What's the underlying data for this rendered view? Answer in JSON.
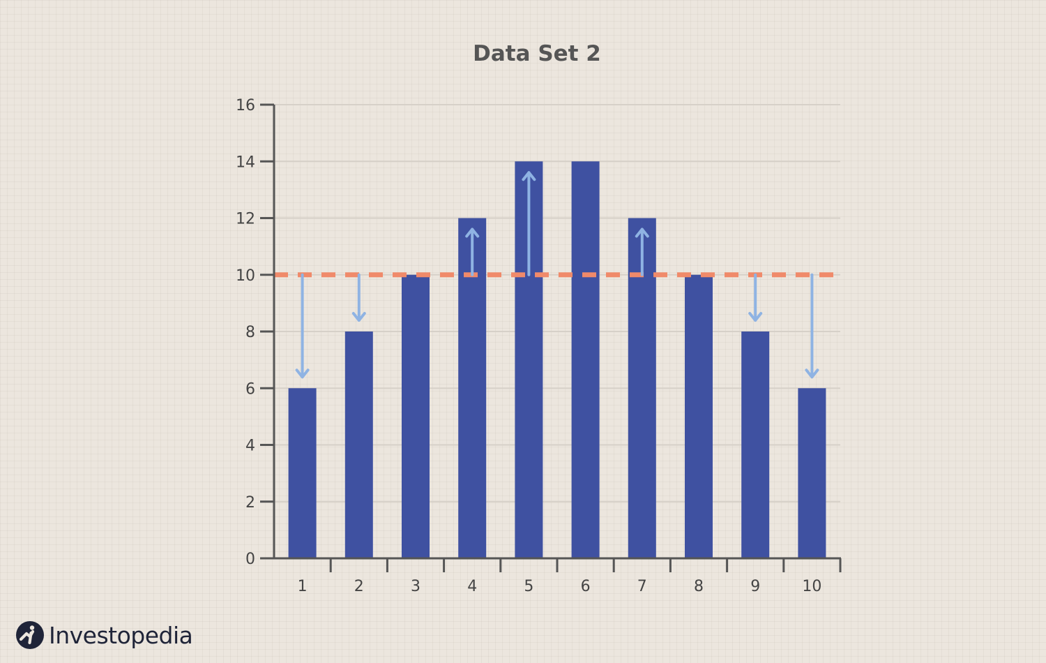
{
  "chart_data": {
    "type": "bar",
    "title": "Data Set 2",
    "xlabel": "",
    "ylabel": "",
    "categories": [
      "1",
      "2",
      "3",
      "4",
      "5",
      "6",
      "7",
      "8",
      "9",
      "10"
    ],
    "values": [
      6,
      8,
      10,
      12,
      14,
      14,
      12,
      10,
      8,
      6
    ],
    "ylim": [
      0,
      16
    ],
    "yticks": [
      0,
      2,
      4,
      6,
      8,
      10,
      12,
      14,
      16
    ],
    "grid": true,
    "reference_line": {
      "value": 10,
      "style": "dashed",
      "color": "#f08a6a"
    },
    "bar_color": "#3f51a1",
    "arrow_color": "#8fb3e3"
  },
  "brand": {
    "name": "Investopedia",
    "color": "#1f2438"
  }
}
